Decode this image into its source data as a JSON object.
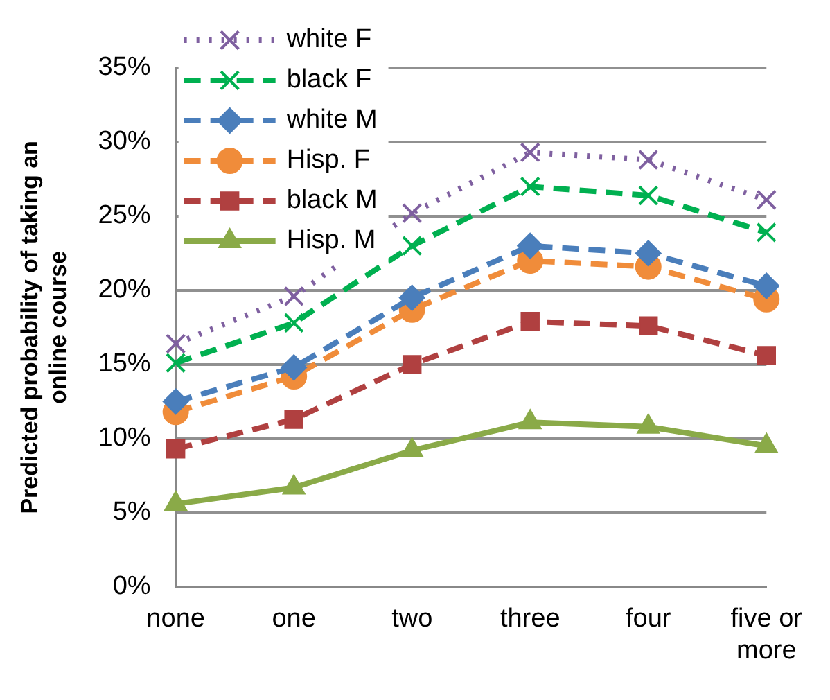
{
  "chart_data": {
    "type": "line",
    "ylabel": "Predicted probability of taking an online course",
    "categories": [
      "none",
      "one",
      "two",
      "three",
      "four",
      "five or more"
    ],
    "ylim": [
      0,
      35
    ],
    "yticks": [
      {
        "value": 0,
        "label": "0%"
      },
      {
        "value": 5,
        "label": "5%"
      },
      {
        "value": 10,
        "label": "10%"
      },
      {
        "value": 15,
        "label": "15%"
      },
      {
        "value": 20,
        "label": "20%"
      },
      {
        "value": 25,
        "label": "25%"
      },
      {
        "value": 30,
        "label": "30%"
      },
      {
        "value": 35,
        "label": "35%"
      }
    ],
    "grid": "y",
    "legend": "top left",
    "series": [
      {
        "name": "white F",
        "color": "#7f60a0",
        "marker": "cross",
        "line_style": "dotted",
        "values": [
          16.4,
          19.6,
          25.2,
          29.3,
          28.8,
          26.1
        ]
      },
      {
        "name": "black F",
        "color": "#00b050",
        "marker": "cross",
        "line_style": "dashed",
        "values": [
          15.1,
          17.8,
          23.0,
          27.0,
          26.4,
          23.9
        ]
      },
      {
        "name": "white M",
        "color": "#4a7ebb",
        "marker": "diamond",
        "line_style": "dashed",
        "values": [
          12.5,
          14.8,
          19.5,
          23.0,
          22.5,
          20.3
        ]
      },
      {
        "name": "Hisp. F",
        "color": "#f08c3a",
        "marker": "circle",
        "line_style": "dashed",
        "values": [
          11.8,
          14.2,
          18.7,
          22.0,
          21.6,
          19.4
        ]
      },
      {
        "name": "black M",
        "color": "#b04040",
        "marker": "square",
        "line_style": "dashed",
        "values": [
          9.3,
          11.3,
          15.0,
          17.9,
          17.6,
          15.6
        ]
      },
      {
        "name": "Hisp. M",
        "color": "#8aaa48",
        "marker": "triangle",
        "line_style": "solid",
        "values": [
          5.6,
          6.7,
          9.2,
          11.1,
          10.8,
          9.5
        ]
      }
    ]
  }
}
